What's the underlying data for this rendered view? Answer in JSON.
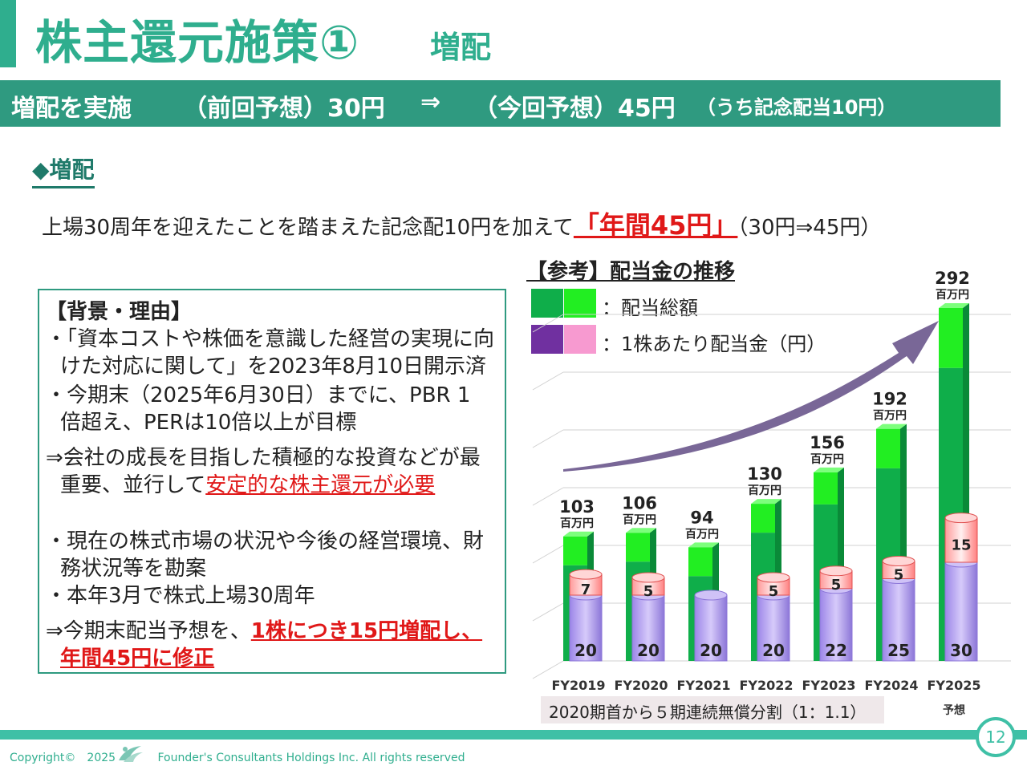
{
  "title": "株主還元施策①",
  "subtitle": "増配",
  "banner": {
    "part1": "増配を実施",
    "part2": "（前回予想）30円",
    "arrow": "⇒",
    "part3": "（今回予想）45円",
    "part4": "（うち記念配当10円）"
  },
  "section_heading": "◆増配",
  "lead": {
    "before": "上場30周年を迎えたことを踏まえた記念配10円を加えて",
    "highlight": "「年間45円」",
    "after": "（30円⇒45円）"
  },
  "reason": {
    "heading": "【背景・理由】",
    "l1": "・「資本コストや株価を意識した経営の実現に向",
    "l2": "けた対応に関して」を2023年8月10日開示済",
    "l3": "・今期末（2025年6月30日）までに、PBR 1",
    "l4": "倍超え、PERは10倍以上が目標",
    "l5": "⇒会社の成長を目指した積極的な投資などが最",
    "l6a": "重要、並行して",
    "l6b": "安定的な株主還元が必要",
    "l7": "・現在の株式市場の状況や今後の経営環境、財",
    "l8": "務状況等を勘案",
    "l9": "・本年3月で株式上場30周年",
    "l10a": "⇒今期末配当予想を、",
    "l10b": "1株につき15円増配し、",
    "l11": "年間45円に修正"
  },
  "chart_heading": "【参考】配当金の推移",
  "legend": {
    "total": "：配当総額",
    "per_share": "：1株あたり配当金（円）"
  },
  "colors": {
    "brand": "#2fae8e",
    "total_dark": "#0fae4a",
    "total_light": "#22ee22",
    "per_share_base": "#b9a6f0",
    "per_share_extra": "#f79ad0",
    "highlight_red": "#e01818"
  },
  "chart_data": {
    "type": "bar",
    "categories": [
      "FY2019",
      "FY2020",
      "FY2021",
      "FY2022",
      "FY2023",
      "FY2024",
      "FY2025"
    ],
    "category_notes": [
      "",
      "",
      "",
      "",
      "",
      "",
      "予想"
    ],
    "series": [
      {
        "name": "配当総額",
        "unit": "百万円",
        "values": [
          103,
          106,
          94,
          130,
          156,
          192,
          292
        ]
      },
      {
        "name": "1株あたり配当金（円）",
        "base": [
          20,
          20,
          20,
          20,
          22,
          25,
          30
        ],
        "extra": [
          7,
          5,
          null,
          5,
          5,
          5,
          15
        ]
      }
    ],
    "value_unit_label": "百万円",
    "grid": true,
    "legend_position": "top-left"
  },
  "footnote": "2020期首から５期連続無償分割（1：1.1）",
  "copyright": "Copyright©　2025",
  "company": "Founder's Consultants Holdings Inc.  All rights reserved",
  "page_number": "12"
}
